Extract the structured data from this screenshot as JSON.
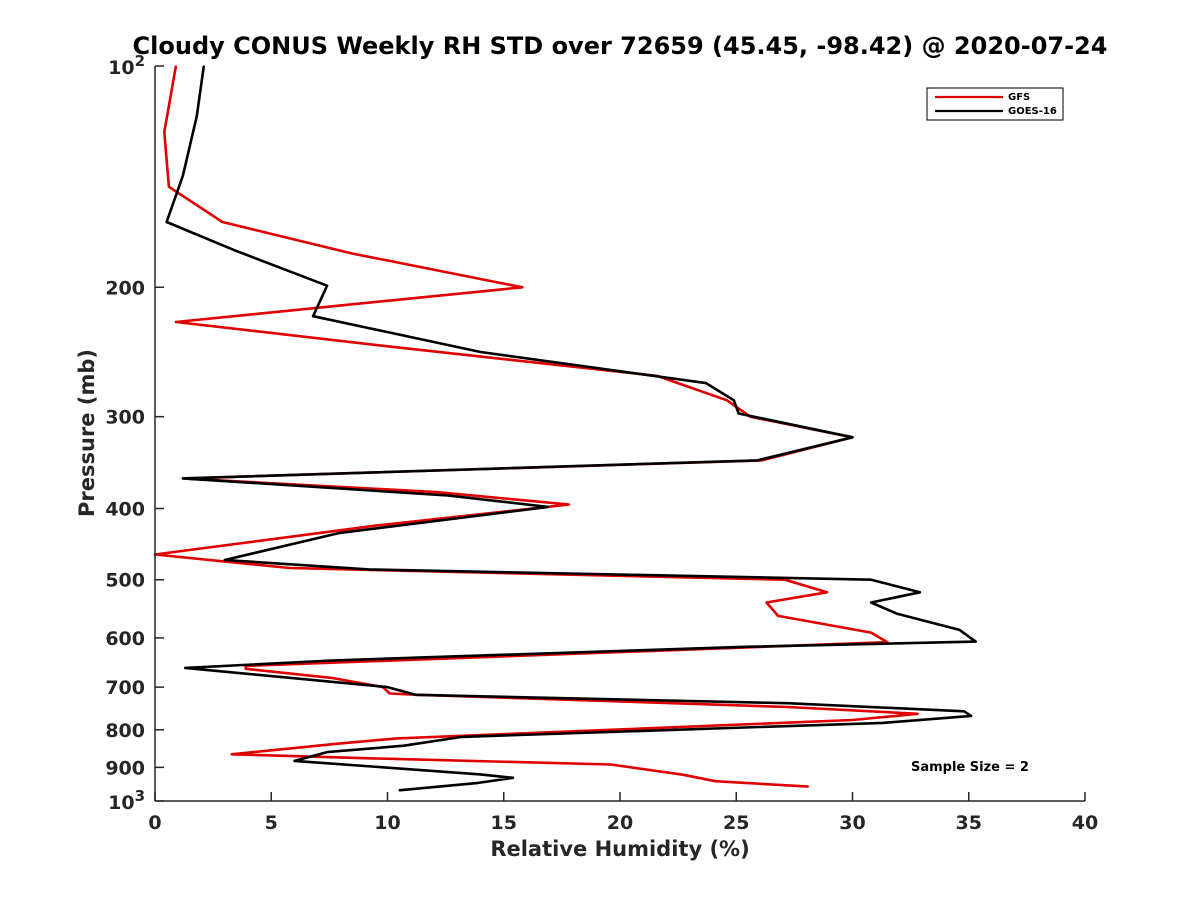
{
  "chart_data": {
    "type": "line",
    "title": "Cloudy CONUS Weekly RH STD over 72659 (45.45, -98.42) @ 2020-07-24",
    "xlabel": "Relative Humidity (%)",
    "ylabel": "Pressure (mb)",
    "xlim": [
      0,
      40
    ],
    "ylim": [
      100,
      1000
    ],
    "y_scale": "log",
    "y_reversed": true,
    "x_ticks": [
      "0",
      "5",
      "10",
      "15",
      "20",
      "25",
      "30",
      "35",
      "40"
    ],
    "y_ticks": [
      {
        "value": 100,
        "base": "10",
        "exp": "2"
      },
      {
        "value": 200,
        "label": "200"
      },
      {
        "value": 300,
        "label": "300"
      },
      {
        "value": 400,
        "label": "400"
      },
      {
        "value": 500,
        "label": "500"
      },
      {
        "value": 600,
        "label": "600"
      },
      {
        "value": 700,
        "label": "700"
      },
      {
        "value": 800,
        "label": "800"
      },
      {
        "value": 900,
        "label": "900"
      },
      {
        "value": 1000,
        "base": "10",
        "exp": "3"
      }
    ],
    "grid": false,
    "legend_position": "top-right",
    "series": [
      {
        "name": "GFS",
        "color": "#e00000",
        "points": [
          [
            0.9,
            100
          ],
          [
            0.4,
            123
          ],
          [
            0.6,
            146
          ],
          [
            2.9,
            163
          ],
          [
            8.5,
            180
          ],
          [
            15.8,
            200
          ],
          [
            0.9,
            223
          ],
          [
            10.2,
            241
          ],
          [
            21.6,
            264
          ],
          [
            24.6,
            285
          ],
          [
            25.6,
            300
          ],
          [
            30.0,
            320
          ],
          [
            26.1,
            344
          ],
          [
            1.2,
            364
          ],
          [
            12.1,
            380
          ],
          [
            17.8,
            395
          ],
          [
            9.5,
            422
          ],
          [
            0,
            462
          ],
          [
            5.8,
            482
          ],
          [
            27.1,
            500
          ],
          [
            28.9,
            520
          ],
          [
            26.3,
            537
          ],
          [
            26.8,
            560
          ],
          [
            30.8,
            590
          ],
          [
            31.5,
            608
          ],
          [
            3.9,
            655
          ],
          [
            3.9,
            661
          ],
          [
            7.6,
            680
          ],
          [
            9.8,
            700
          ],
          [
            10.1,
            714
          ],
          [
            11.3,
            717
          ],
          [
            27.2,
            745
          ],
          [
            32.8,
            761
          ],
          [
            30.0,
            776
          ],
          [
            10.4,
            822
          ],
          [
            7.8,
            836
          ],
          [
            3.3,
            864
          ],
          [
            9.4,
            875
          ],
          [
            19.6,
            892
          ],
          [
            22.7,
            921
          ],
          [
            24.1,
            940
          ],
          [
            28.1,
            956
          ]
        ]
      },
      {
        "name": "GOES-16",
        "color": "#000000",
        "points": [
          [
            2.1,
            100
          ],
          [
            1.8,
            117
          ],
          [
            1.2,
            141
          ],
          [
            0.5,
            163
          ],
          [
            3.4,
            178
          ],
          [
            7.4,
            199
          ],
          [
            6.8,
            219
          ],
          [
            14.0,
            245
          ],
          [
            23.7,
            270
          ],
          [
            24.9,
            285
          ],
          [
            25.1,
            297
          ],
          [
            30.0,
            320
          ],
          [
            25.9,
            344
          ],
          [
            1.2,
            364
          ],
          [
            12.6,
            384
          ],
          [
            16.9,
            398
          ],
          [
            7.9,
            432
          ],
          [
            3.0,
            470
          ],
          [
            9.2,
            484
          ],
          [
            30.8,
            500
          ],
          [
            32.9,
            520
          ],
          [
            30.8,
            537
          ],
          [
            31.9,
            556
          ],
          [
            34.6,
            585
          ],
          [
            35.3,
            607
          ],
          [
            25.2,
            617
          ],
          [
            7.6,
            644
          ],
          [
            1.3,
            659
          ],
          [
            10.0,
            700
          ],
          [
            11.2,
            717
          ],
          [
            27.2,
            736
          ],
          [
            34.8,
            755
          ],
          [
            35.1,
            766
          ],
          [
            31.3,
            783
          ],
          [
            13.2,
            818
          ],
          [
            10.7,
            841
          ],
          [
            7.4,
            858
          ],
          [
            6.0,
            882
          ],
          [
            14.0,
            920
          ],
          [
            15.4,
            930
          ],
          [
            13.9,
            945
          ],
          [
            10.5,
            967
          ]
        ]
      }
    ],
    "annotation": "Sample Size = 2"
  }
}
